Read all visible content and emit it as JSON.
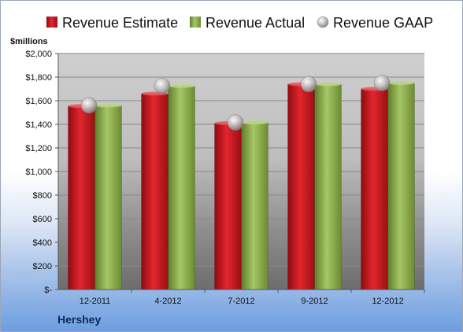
{
  "chart_data": {
    "type": "bar",
    "title": "",
    "ylabel": "$millions",
    "xlabel": "",
    "categories": [
      "12-2011",
      "4-2012",
      "7-2012",
      "9-2012",
      "12-2012"
    ],
    "series": [
      {
        "name": "Revenue Estimate",
        "kind": "bar",
        "color": "#c8161d",
        "values": [
          1555,
          1660,
          1410,
          1740,
          1700
        ]
      },
      {
        "name": "Revenue Actual",
        "kind": "bar",
        "color": "#8cb04a",
        "values": [
          1560,
          1725,
          1415,
          1740,
          1750
        ]
      },
      {
        "name": "Revenue GAAP",
        "kind": "marker",
        "color": "#b4b4b4",
        "values": [
          1560,
          1725,
          1415,
          1740,
          1750
        ]
      }
    ],
    "yticks": [
      "$-",
      "$200",
      "$400",
      "$600",
      "$800",
      "$1,000",
      "$1,200",
      "$1,400",
      "$1,600",
      "$1,800",
      "$2,000"
    ],
    "ylim": [
      0,
      2000
    ],
    "grid": true,
    "legend_position": "top"
  },
  "footer": {
    "company": "Hershey"
  }
}
